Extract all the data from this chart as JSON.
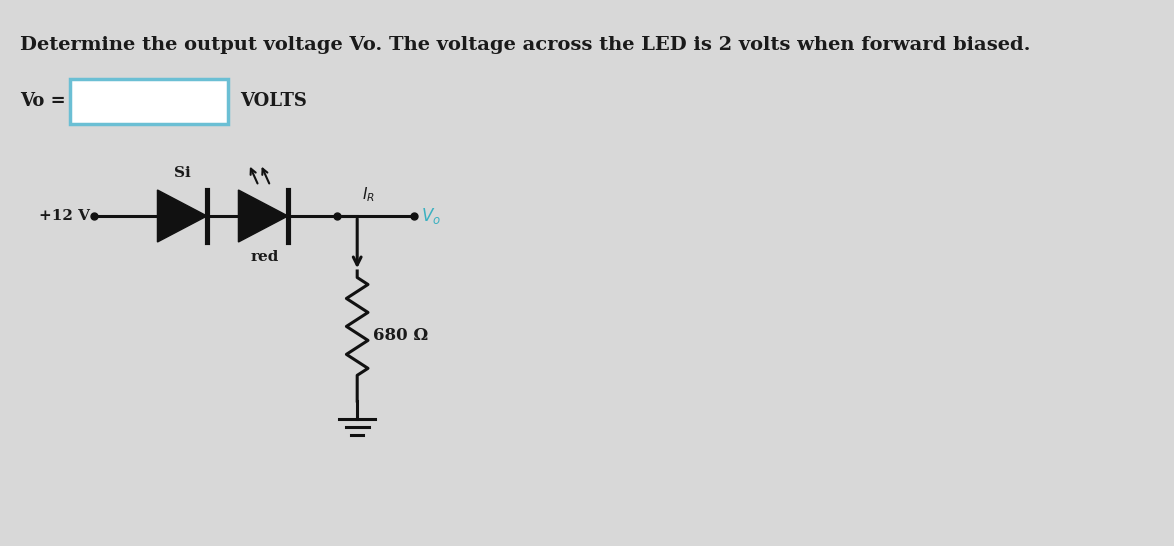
{
  "title": "Determine the output voltage Vo. The voltage across the LED is 2 volts when forward biased.",
  "vo_label": "Vo =",
  "volts_label": "VOLTS",
  "box_color": "#6bbfd4",
  "background_color": "#d8d8d8",
  "v_source": "+12 V",
  "si_label": "Si",
  "red_label": "red",
  "resistor_label": "680 Ω",
  "text_color": "#1a1a1a",
  "circuit_color": "#111111",
  "vo_color": "#3ab0c0",
  "title_fontsize": 14,
  "label_fontsize": 13,
  "circuit_fontsize": 11
}
